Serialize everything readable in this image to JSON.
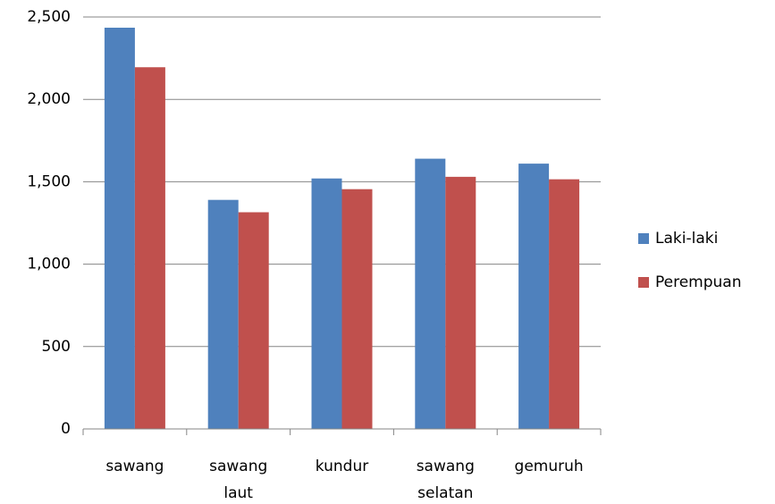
{
  "chart_data": {
    "type": "bar",
    "categories": [
      "sawang",
      "sawang laut",
      "kundur",
      "sawang selatan",
      "gemuruh"
    ],
    "series": [
      {
        "name": "Laki-laki",
        "color": "#4f81bd",
        "values": [
          2435,
          1390,
          1520,
          1640,
          1610
        ]
      },
      {
        "name": "Perempuan",
        "color": "#c0504d",
        "values": [
          2195,
          1315,
          1455,
          1530,
          1515
        ]
      }
    ],
    "ylim": [
      0,
      2500
    ],
    "yticks": [
      0,
      500,
      {
        "value": 1000,
        "label": "1,000"
      },
      {
        "value": 1500,
        "label": "1,500"
      },
      {
        "value": 2000,
        "label": "2,000"
      },
      {
        "value": 2500,
        "label": "2,500"
      }
    ],
    "grid": true,
    "legend": "right"
  }
}
